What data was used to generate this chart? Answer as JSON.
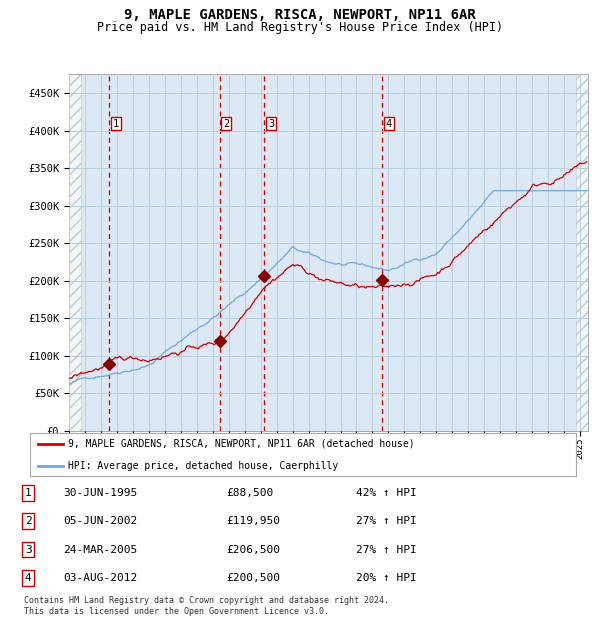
{
  "title_line1": "9, MAPLE GARDENS, RISCA, NEWPORT, NP11 6AR",
  "title_line2": "Price paid vs. HM Land Registry's House Price Index (HPI)",
  "ylim": [
    0,
    475000
  ],
  "yticks": [
    0,
    50000,
    100000,
    150000,
    200000,
    250000,
    300000,
    350000,
    400000,
    450000
  ],
  "ytick_labels": [
    "£0",
    "£50K",
    "£100K",
    "£150K",
    "£200K",
    "£250K",
    "£300K",
    "£350K",
    "£400K",
    "£450K"
  ],
  "hpi_color": "#6fa8dc",
  "price_color": "#cc0000",
  "sale_marker_color": "#880000",
  "vline_color": "#cc0000",
  "grid_color": "#b8cfe0",
  "plot_bg_color": "#dce9f5",
  "legend_label_red": "9, MAPLE GARDENS, RISCA, NEWPORT, NP11 6AR (detached house)",
  "legend_label_blue": "HPI: Average price, detached house, Caerphilly",
  "sales": [
    {
      "num": 1,
      "date": "1995-06-30",
      "price": 88500,
      "pct": 42
    },
    {
      "num": 2,
      "date": "2002-06-05",
      "price": 119950,
      "pct": 27
    },
    {
      "num": 3,
      "date": "2005-03-24",
      "price": 206500,
      "pct": 27
    },
    {
      "num": 4,
      "date": "2012-08-03",
      "price": 200500,
      "pct": 20
    }
  ],
  "table_rows": [
    {
      "num": 1,
      "date": "30-JUN-1995",
      "price": "£88,500",
      "pct": "42% ↑ HPI"
    },
    {
      "num": 2,
      "date": "05-JUN-2002",
      "price": "£119,950",
      "pct": "27% ↑ HPI"
    },
    {
      "num": 3,
      "date": "24-MAR-2005",
      "price": "£206,500",
      "pct": "27% ↑ HPI"
    },
    {
      "num": 4,
      "date": "03-AUG-2012",
      "price": "£200,500",
      "pct": "20% ↑ HPI"
    }
  ],
  "footnote": "Contains HM Land Registry data © Crown copyright and database right 2024.\nThis data is licensed under the Open Government Licence v3.0."
}
